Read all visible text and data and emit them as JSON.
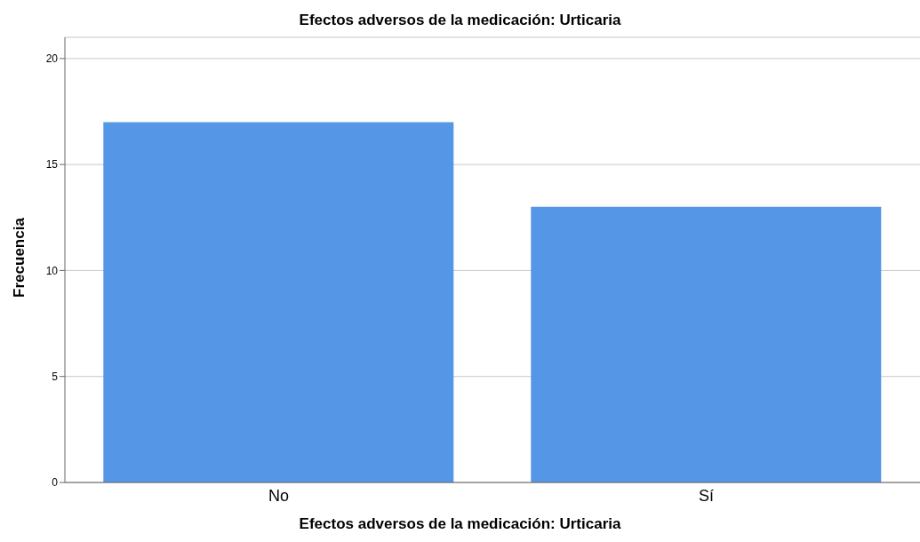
{
  "chart_data": {
    "type": "bar",
    "title": "Efectos adversos de la medicación: Urticaria",
    "xlabel": "Efectos adversos de la medicación: Urticaria",
    "ylabel": "Frecuencia",
    "categories": [
      "No",
      "Sí"
    ],
    "values": [
      17,
      13
    ],
    "color": "#5596e6",
    "ylim": [
      0,
      21
    ],
    "yticks": [
      0,
      5,
      10,
      15,
      20
    ],
    "grid": "y",
    "legend": false
  }
}
